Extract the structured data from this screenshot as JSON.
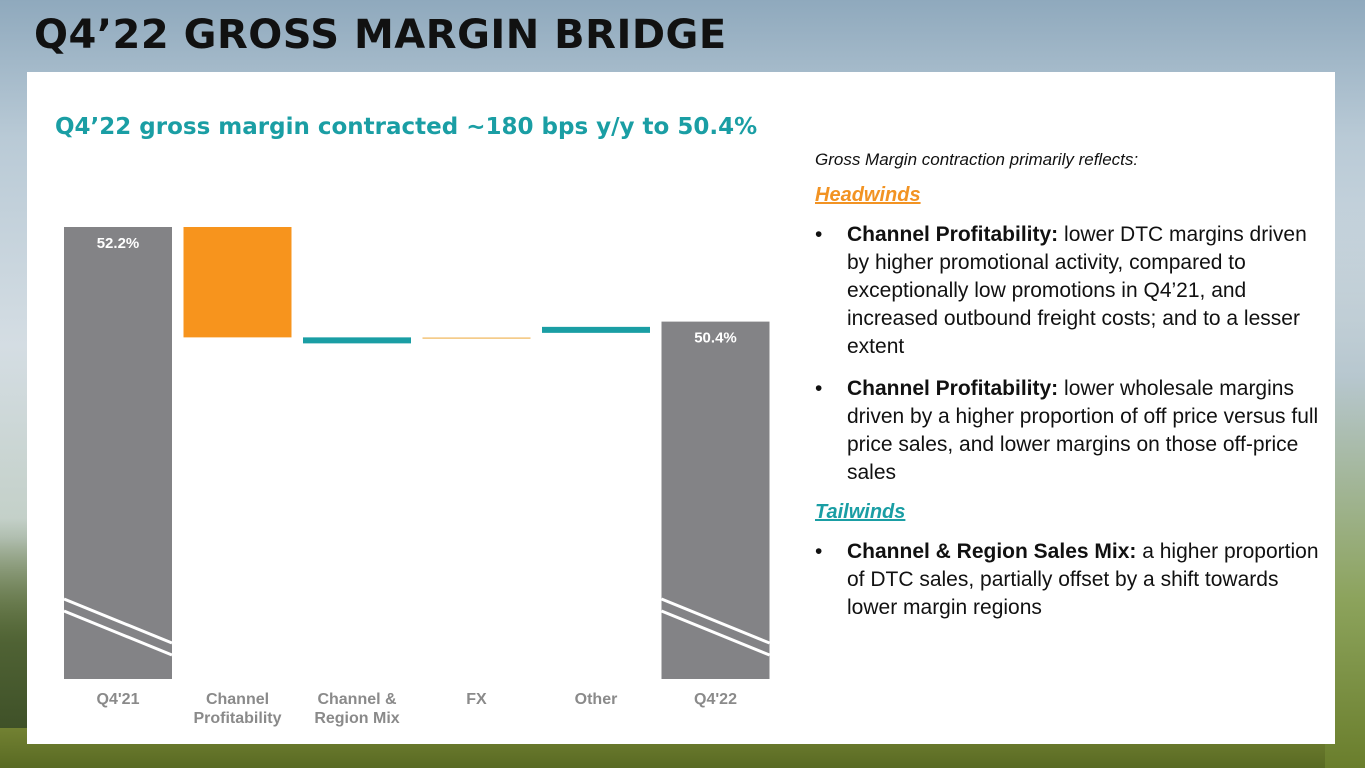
{
  "slide": {
    "title": "Q4’22 GROSS MARGIN BRIDGE",
    "subtitle": "Q4’22 gross margin contracted ~180 bps y/y to 50.4%"
  },
  "colors": {
    "total_bar": "#838386",
    "headwind_bar": "#f7941d",
    "teal_bar": "#1a9ea4",
    "fx_bar": "#f3c47a"
  },
  "chart_data": {
    "type": "bar",
    "subtype": "waterfall",
    "categories": [
      "Q4'21",
      "Channel\nProfitability",
      "Channel &\nRegion Mix",
      "FX",
      "Other",
      "Q4'22"
    ],
    "category_lines": [
      [
        "Q4'21"
      ],
      [
        "Channel",
        "Profitability"
      ],
      [
        "Channel &",
        "Region Mix"
      ],
      [
        "FX"
      ],
      [
        "Other"
      ],
      [
        "Q4'22"
      ]
    ],
    "bars": [
      {
        "category": "Q4'21",
        "kind": "total",
        "start": 0,
        "end": 52.2,
        "label": "52.2%"
      },
      {
        "category": "Channel Profitability",
        "kind": "decrease",
        "start": 52.2,
        "end": 50.1,
        "label": ""
      },
      {
        "category": "Channel & Region Mix",
        "kind": "increase",
        "start": 50.0,
        "end": 50.1,
        "label": ""
      },
      {
        "category": "FX",
        "kind": "decrease",
        "start": 50.1,
        "end": 50.09,
        "label": ""
      },
      {
        "category": "Other",
        "kind": "increase",
        "start": 50.2,
        "end": 50.3,
        "label": ""
      },
      {
        "category": "Q4'22",
        "kind": "total",
        "start": 0,
        "end": 50.4,
        "label": "50.4%"
      }
    ],
    "axis_break": true,
    "ylim_visible": [
      43.6,
      52.2
    ],
    "grid": false,
    "legend": "none"
  },
  "notes": {
    "intro": "Gross Margin contraction primarily reflects:",
    "headwinds": {
      "heading": "Headwinds",
      "items": [
        {
          "bold": "Channel Profitability:",
          "text": " lower DTC margins driven by higher promotional activity, compared to exceptionally low promotions in Q4’21, and increased outbound freight costs; and to a lesser extent"
        },
        {
          "bold": "Channel Profitability:",
          "text": " lower wholesale margins driven by a higher proportion of off price versus full price sales, and lower margins on those off-price sales"
        }
      ]
    },
    "tailwinds": {
      "heading": "Tailwinds",
      "items": [
        {
          "bold": "Channel & Region Sales Mix:",
          "text": " a higher proportion of DTC sales, partially offset by a shift towards lower margin regions"
        }
      ]
    },
    "bullet_char": "•"
  }
}
